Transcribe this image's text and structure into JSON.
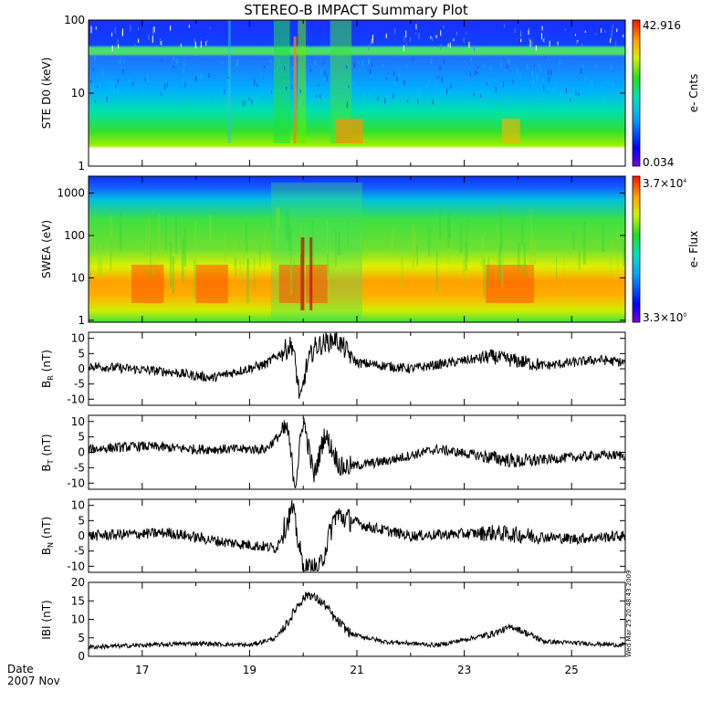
{
  "chart_data": {
    "type": "line",
    "title": "STEREO-B IMPACT Summary Plot",
    "date_label": "Date",
    "date_value": "2007 Nov",
    "timestamp": "Wed Mar 25 20:48:43 2009",
    "xrange": [
      "2007-11-16",
      "2007-11-26"
    ],
    "x_ticks": [
      "17",
      "19",
      "21",
      "23",
      "25"
    ],
    "panels": [
      {
        "id": "ste",
        "type": "heatmap",
        "ylabel": "STE D0 (keV)",
        "yscale": "log",
        "ylim": [
          1,
          100
        ],
        "y_ticks": [
          "100",
          "10",
          "1"
        ],
        "colorbar": {
          "max": "42.916",
          "min": "0.034",
          "label": "e- Cnts"
        }
      },
      {
        "id": "swea",
        "type": "heatmap",
        "ylabel": "SWEA (eV)",
        "yscale": "log",
        "ylim": [
          0.9,
          2500
        ],
        "y_ticks": [
          "1000",
          "100",
          "10",
          "1"
        ],
        "colorbar": {
          "max_base": "3.7×10",
          "max_exp": "4",
          "min_base": "3.3×10",
          "min_exp": "0",
          "label": "e- Flux"
        }
      },
      {
        "id": "br",
        "type": "line",
        "ylabel_main": "B",
        "ylabel_sub": "R",
        "ylabel_unit": " (nT)",
        "ylim": [
          -12,
          12
        ],
        "y_ticks": [
          "10",
          "5",
          "0",
          "-5",
          "-10"
        ],
        "events": [
          {
            "day": 16.0,
            "value": 1.0
          },
          {
            "day": 17.5,
            "value": -1.0
          },
          {
            "day": 18.3,
            "value": -3.0
          },
          {
            "day": 19.3,
            "value": 1.5
          },
          {
            "day": 19.8,
            "value": 8.0
          },
          {
            "day": 19.95,
            "value": -11.0
          },
          {
            "day": 20.05,
            "value": 0.0
          },
          {
            "day": 20.2,
            "value": 7.0
          },
          {
            "day": 20.6,
            "value": 10.0
          },
          {
            "day": 21.0,
            "value": 2.0
          },
          {
            "day": 22.0,
            "value": 0.0
          },
          {
            "day": 23.5,
            "value": 4.0
          },
          {
            "day": 24.5,
            "value": 1.0
          },
          {
            "day": 25.5,
            "value": 3.0
          },
          {
            "day": 26.0,
            "value": 2.0
          }
        ]
      },
      {
        "id": "bt",
        "type": "line",
        "ylabel_main": "B",
        "ylabel_sub": "T",
        "ylabel_unit": " (nT)",
        "ylim": [
          -12,
          12
        ],
        "y_ticks": [
          "10",
          "5",
          "0",
          "-5",
          "-10"
        ],
        "events": [
          {
            "day": 16.0,
            "value": 1.0
          },
          {
            "day": 17.0,
            "value": 2.0
          },
          {
            "day": 18.0,
            "value": 1.0
          },
          {
            "day": 19.3,
            "value": 1.0
          },
          {
            "day": 19.7,
            "value": 8.0
          },
          {
            "day": 19.85,
            "value": -11.0
          },
          {
            "day": 20.0,
            "value": 11.0
          },
          {
            "day": 20.2,
            "value": -8.0
          },
          {
            "day": 20.4,
            "value": 6.0
          },
          {
            "day": 20.7,
            "value": -5.0
          },
          {
            "day": 21.5,
            "value": -3.0
          },
          {
            "day": 22.5,
            "value": 1.0
          },
          {
            "day": 24.0,
            "value": -3.0
          },
          {
            "day": 25.5,
            "value": -1.0
          },
          {
            "day": 26.0,
            "value": -1.0
          }
        ]
      },
      {
        "id": "bn",
        "type": "line",
        "ylabel_main": "B",
        "ylabel_sub": "N",
        "ylabel_unit": " (nT)",
        "ylim": [
          -12,
          12
        ],
        "y_ticks": [
          "10",
          "5",
          "0",
          "-5",
          "-10"
        ],
        "events": [
          {
            "day": 16.0,
            "value": 0.0
          },
          {
            "day": 17.5,
            "value": 1.0
          },
          {
            "day": 18.5,
            "value": -2.0
          },
          {
            "day": 19.5,
            "value": -4.0
          },
          {
            "day": 19.8,
            "value": 9.0
          },
          {
            "day": 20.0,
            "value": -11.0
          },
          {
            "day": 20.3,
            "value": -11.0
          },
          {
            "day": 20.6,
            "value": 7.0
          },
          {
            "day": 21.2,
            "value": 3.0
          },
          {
            "day": 22.0,
            "value": 0.0
          },
          {
            "day": 23.5,
            "value": 1.0
          },
          {
            "day": 25.0,
            "value": -1.0
          },
          {
            "day": 26.0,
            "value": 0.0
          }
        ]
      },
      {
        "id": "bmag",
        "type": "line",
        "ylabel_main": "IBI (nT)",
        "ylim": [
          0,
          20
        ],
        "y_ticks": [
          "20",
          "15",
          "10",
          "5",
          "0"
        ],
        "events": [
          {
            "day": 16.0,
            "value": 2.5
          },
          {
            "day": 17.0,
            "value": 3.0
          },
          {
            "day": 18.0,
            "value": 3.5
          },
          {
            "day": 19.0,
            "value": 3.0
          },
          {
            "day": 19.5,
            "value": 5.0
          },
          {
            "day": 19.75,
            "value": 10.0
          },
          {
            "day": 19.9,
            "value": 14.0
          },
          {
            "day": 20.1,
            "value": 17.0
          },
          {
            "day": 20.4,
            "value": 14.0
          },
          {
            "day": 20.6,
            "value": 10.0
          },
          {
            "day": 20.9,
            "value": 6.0
          },
          {
            "day": 21.5,
            "value": 4.0
          },
          {
            "day": 22.5,
            "value": 3.0
          },
          {
            "day": 23.5,
            "value": 6.0
          },
          {
            "day": 23.9,
            "value": 8.0
          },
          {
            "day": 24.5,
            "value": 4.0
          },
          {
            "day": 26.0,
            "value": 3.0
          }
        ]
      }
    ]
  }
}
